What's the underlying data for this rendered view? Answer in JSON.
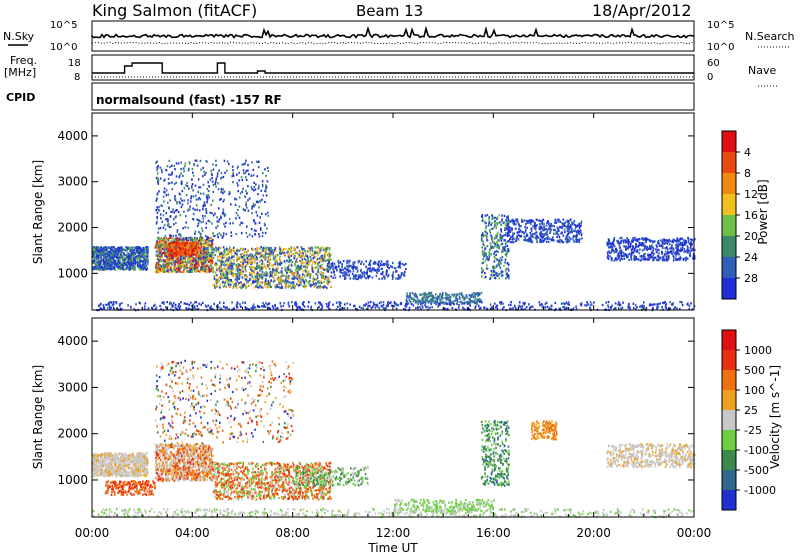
{
  "header": {
    "title": "King Salmon (fitACF)",
    "beam": "Beam 13",
    "date": "18/Apr/2012"
  },
  "top_panels": {
    "nsky_label": "N.Sky",
    "nsky_ticks": [
      "10^5",
      "10^0"
    ],
    "nsearch_label": "N.Search",
    "nsearch_ticks": [
      "10^5",
      "10^0"
    ],
    "freq_label": "Freq.",
    "freq_unit": "[MHz]",
    "freq_ticks": [
      "18",
      "8"
    ],
    "nave_label": "Nave",
    "nave_ticks": [
      "60",
      "0"
    ],
    "cpid_label": "CPID",
    "cpid_text": "normalsound (fast) -157 RF"
  },
  "chart_data": [
    {
      "type": "heatmap",
      "panel": "power",
      "ylabel": "Slant Range [km]",
      "ylim": [
        200,
        4500
      ],
      "yticks": [
        "1000",
        "2000",
        "3000",
        "4000"
      ],
      "xlabel": "Time UT",
      "xlim": [
        "00:00",
        "24:00"
      ],
      "xticks": [
        "00:00",
        "04:00",
        "08:00",
        "12:00",
        "16:00",
        "20:00",
        "00:00"
      ],
      "colorbar": {
        "label": "Power [dB]",
        "ticks": [
          "4",
          "8",
          "12",
          "16",
          "20",
          "24",
          "28"
        ],
        "colors": [
          "#1f2fd8",
          "#2f5fb8",
          "#3a8a6a",
          "#6cc04a",
          "#f0c020",
          "#f08a10",
          "#e84a10",
          "#e01010"
        ]
      }
    },
    {
      "type": "heatmap",
      "panel": "velocity",
      "ylabel": "Slant Range [km]",
      "ylim": [
        200,
        4500
      ],
      "yticks": [
        "1000",
        "2000",
        "3000",
        "4000"
      ],
      "xlabel": "Time UT",
      "xlim": [
        "00:00",
        "24:00"
      ],
      "xticks": [
        "00:00",
        "04:00",
        "08:00",
        "12:00",
        "16:00",
        "20:00",
        "00:00"
      ],
      "colorbar": {
        "label": "Velocity [m s^-1]",
        "ticks": [
          "1000",
          "500",
          "100",
          "25",
          "-25",
          "-100",
          "-500",
          "-1000"
        ],
        "colors": [
          "#2030d0",
          "#2f6a8a",
          "#3a8a4a",
          "#6cd040",
          "#c8c8c8",
          "#f0a020",
          "#f07010",
          "#e83010",
          "#e01010"
        ]
      }
    }
  ]
}
